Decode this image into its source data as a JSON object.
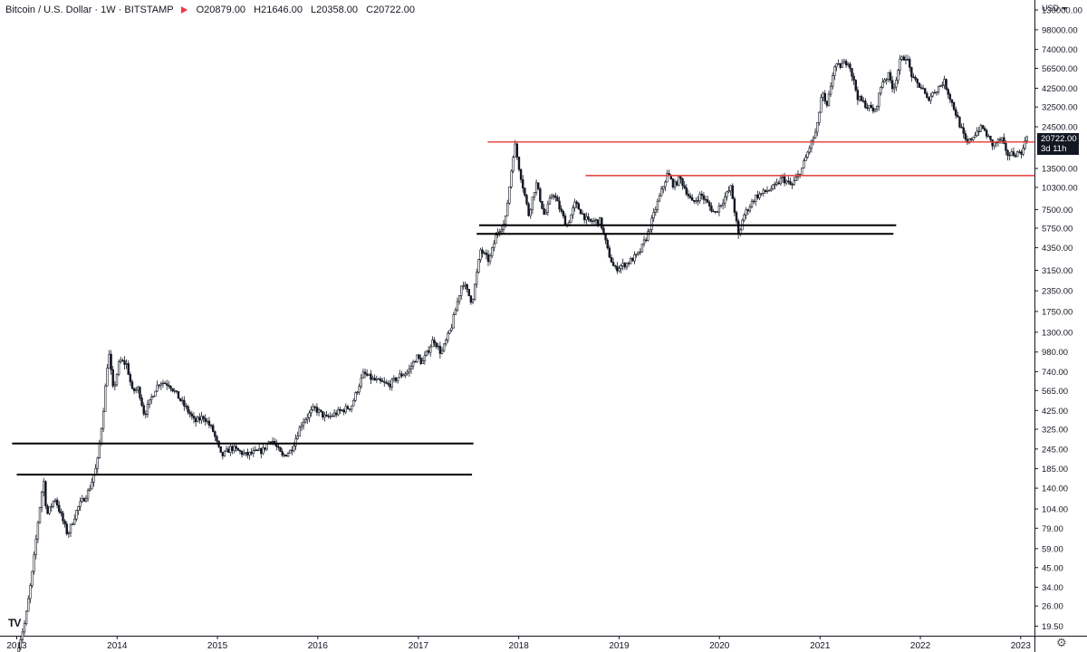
{
  "header": {
    "title": "Bitcoin / U.S. Dollar · 1W · BITSTAMP",
    "ohlc": [
      {
        "label": "O",
        "value": "20879.00"
      },
      {
        "label": "H",
        "value": "21646.00"
      },
      {
        "label": "L",
        "value": "20358.00"
      },
      {
        "label": "C",
        "value": "20722.00"
      }
    ]
  },
  "currency": "USD",
  "last_price": {
    "value": "20722.00",
    "countdown": "3d 11h"
  },
  "logo_text": "TV",
  "colors": {
    "candle": "#131722",
    "support_line": "#000000",
    "resistance_line": "#e53935",
    "axis_text": "#131722"
  },
  "chart_data": {
    "type": "candlestick",
    "y_scale": "log",
    "ylim": [
      17,
      150000
    ],
    "x_range": [
      "2012-11-01",
      "2023-02-20"
    ],
    "y_ticks": [
      130000,
      98000,
      74000,
      56500,
      42500,
      32500,
      24500,
      13500,
      10300,
      7500,
      5750,
      4350,
      3150,
      2350,
      1750,
      1300,
      980,
      740,
      565,
      425,
      325,
      245,
      185,
      140,
      104,
      79,
      59,
      45,
      34,
      26,
      19.5
    ],
    "y_tick_labels": [
      "130000.00",
      "98000.00",
      "74000.00",
      "56500.00",
      "42500.00",
      "32500.00",
      "24500.00",
      "13500.00",
      "10300.00",
      "7500.00",
      "5750.00",
      "4350.00",
      "3150.00",
      "2350.00",
      "1750.00",
      "1300.00",
      "980.00",
      "740.00",
      "565.00",
      "425.00",
      "325.00",
      "245.00",
      "185.00",
      "140.00",
      "104.00",
      "79.00",
      "59.00",
      "45.00",
      "34.00",
      "26.00",
      "19.50"
    ],
    "x_ticks": [
      "2013",
      "2014",
      "2015",
      "2016",
      "2017",
      "2018",
      "2019",
      "2020",
      "2021",
      "2022",
      "2023"
    ],
    "price_path": [
      [
        "2013-01-01",
        13.5
      ],
      [
        "2013-02-01",
        21
      ],
      [
        "2013-03-01",
        45
      ],
      [
        "2013-03-20",
        90
      ],
      [
        "2013-04-08",
        160
      ],
      [
        "2013-04-20",
        95
      ],
      [
        "2013-05-20",
        122
      ],
      [
        "2013-07-05",
        72
      ],
      [
        "2013-08-10",
        105
      ],
      [
        "2013-09-20",
        135
      ],
      [
        "2013-10-20",
        195
      ],
      [
        "2013-11-10",
        400
      ],
      [
        "2013-12-01",
        1000
      ],
      [
        "2013-12-18",
        560
      ],
      [
        "2014-01-10",
        870
      ],
      [
        "2014-02-05",
        820
      ],
      [
        "2014-02-25",
        560
      ],
      [
        "2014-03-20",
        580
      ],
      [
        "2014-04-10",
        400
      ],
      [
        "2014-05-20",
        580
      ],
      [
        "2014-06-05",
        640
      ],
      [
        "2014-07-10",
        620
      ],
      [
        "2014-08-20",
        490
      ],
      [
        "2014-09-25",
        400
      ],
      [
        "2014-10-10",
        360
      ],
      [
        "2014-11-12",
        390
      ],
      [
        "2014-12-15",
        320
      ],
      [
        "2015-01-15",
        220
      ],
      [
        "2015-02-20",
        250
      ],
      [
        "2015-04-15",
        225
      ],
      [
        "2015-06-15",
        240
      ],
      [
        "2015-07-15",
        285
      ],
      [
        "2015-08-25",
        220
      ],
      [
        "2015-09-25",
        240
      ],
      [
        "2015-11-05",
        360
      ],
      [
        "2015-12-20",
        440
      ],
      [
        "2016-02-01",
        380
      ],
      [
        "2016-03-15",
        415
      ],
      [
        "2016-05-01",
        450
      ],
      [
        "2016-06-15",
        720
      ],
      [
        "2016-07-20",
        660
      ],
      [
        "2016-09-15",
        610
      ],
      [
        "2016-10-25",
        700
      ],
      [
        "2016-11-25",
        740
      ],
      [
        "2016-12-25",
        920
      ],
      [
        "2017-01-15",
        840
      ],
      [
        "2017-02-25",
        1180
      ],
      [
        "2017-03-25",
        960
      ],
      [
        "2017-05-01",
        1400
      ],
      [
        "2017-06-10",
        2700
      ],
      [
        "2017-07-15",
        2000
      ],
      [
        "2017-08-15",
        4200
      ],
      [
        "2017-09-15",
        3600
      ],
      [
        "2017-10-15",
        5500
      ],
      [
        "2017-11-12",
        6200
      ],
      [
        "2017-12-17",
        19500
      ],
      [
        "2018-01-01",
        14000
      ],
      [
        "2018-02-06",
        7000
      ],
      [
        "2018-03-05",
        11000
      ],
      [
        "2018-04-05",
        6800
      ],
      [
        "2018-05-05",
        9700
      ],
      [
        "2018-06-25",
        5900
      ],
      [
        "2018-07-25",
        8200
      ],
      [
        "2018-09-10",
        6300
      ],
      [
        "2018-10-25",
        6400
      ],
      [
        "2018-11-20",
        4200
      ],
      [
        "2018-12-15",
        3200
      ],
      [
        "2019-02-01",
        3500
      ],
      [
        "2019-03-15",
        4000
      ],
      [
        "2019-04-15",
        5300
      ],
      [
        "2019-05-20",
        8200
      ],
      [
        "2019-06-26",
        12500
      ],
      [
        "2019-07-20",
        10500
      ],
      [
        "2019-08-10",
        11800
      ],
      [
        "2019-09-25",
        8200
      ],
      [
        "2019-10-26",
        9300
      ],
      [
        "2019-12-15",
        7100
      ],
      [
        "2020-02-12",
        10300
      ],
      [
        "2020-03-12",
        4900
      ],
      [
        "2020-03-25",
        6700
      ],
      [
        "2020-05-10",
        9000
      ],
      [
        "2020-07-25",
        10500
      ],
      [
        "2020-08-15",
        11800
      ],
      [
        "2020-09-20",
        10500
      ],
      [
        "2020-10-25",
        13200
      ],
      [
        "2020-11-25",
        18500
      ],
      [
        "2020-12-20",
        23500
      ],
      [
        "2021-01-08",
        40500
      ],
      [
        "2021-01-25",
        31500
      ],
      [
        "2021-02-20",
        57000
      ],
      [
        "2021-03-15",
        58500
      ],
      [
        "2021-04-14",
        63000
      ],
      [
        "2021-05-19",
        37000
      ],
      [
        "2021-06-20",
        33000
      ],
      [
        "2021-07-20",
        30500
      ],
      [
        "2021-08-15",
        47000
      ],
      [
        "2021-09-07",
        51000
      ],
      [
        "2021-09-25",
        42000
      ],
      [
        "2021-10-20",
        63000
      ],
      [
        "2021-11-10",
        67500
      ],
      [
        "2021-12-05",
        48000
      ],
      [
        "2022-01-10",
        42000
      ],
      [
        "2022-01-24",
        36000
      ],
      [
        "2022-03-28",
        47000
      ],
      [
        "2022-05-12",
        29000
      ],
      [
        "2022-06-18",
        19000
      ],
      [
        "2022-07-30",
        23500
      ],
      [
        "2022-08-15",
        24200
      ],
      [
        "2022-09-20",
        19000
      ],
      [
        "2022-10-25",
        20500
      ],
      [
        "2022-11-09",
        16500
      ],
      [
        "2022-12-20",
        16800
      ],
      [
        "2023-01-10",
        17500
      ],
      [
        "2023-01-22",
        22800
      ],
      [
        "2023-01-28",
        20722
      ]
    ],
    "horizontal_lines": [
      {
        "color": "black",
        "price": 265,
        "from": "2012-12-15",
        "to": "2017-07-20"
      },
      {
        "color": "black",
        "price": 170,
        "from": "2013-01-01",
        "to": "2017-07-15"
      },
      {
        "color": "black",
        "price": 6000,
        "from": "2017-08-10",
        "to": "2021-10-05"
      },
      {
        "color": "black",
        "price": 5300,
        "from": "2017-08-01",
        "to": "2021-09-25"
      },
      {
        "color": "red",
        "price": 19700,
        "from": "2017-09-10",
        "to": "2023-02-20"
      },
      {
        "color": "red",
        "price": 12200,
        "from": "2018-09-01",
        "to": "2023-02-20"
      }
    ]
  }
}
